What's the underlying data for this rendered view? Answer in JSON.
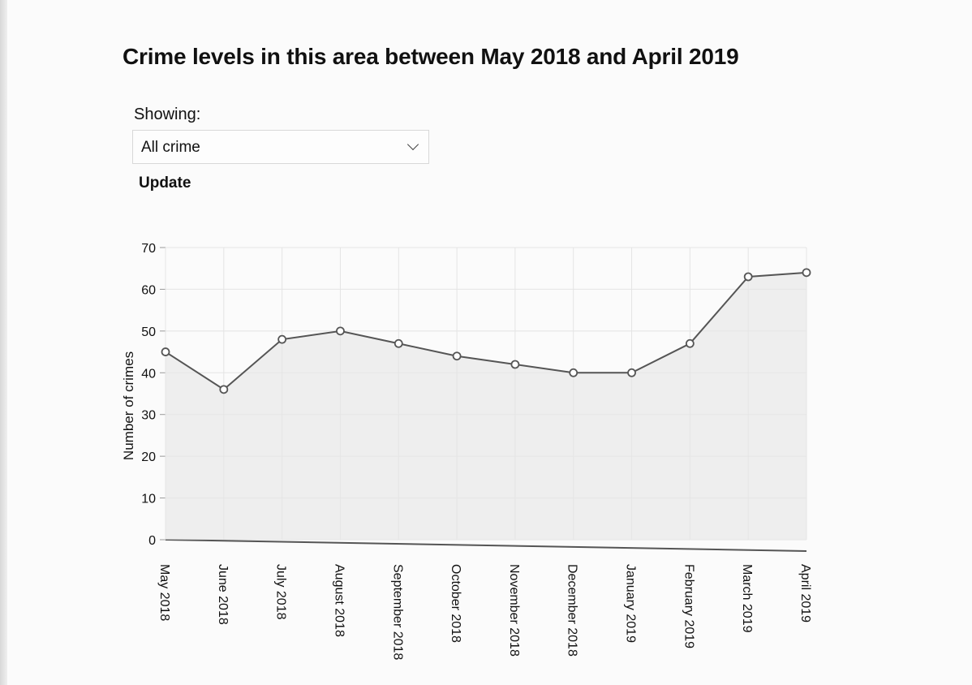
{
  "page": {
    "title": "Crime levels in this area between May 2018 and April 2019",
    "showing_label": "Showing:",
    "filter": {
      "selected": "All crime"
    },
    "update_label": "Update"
  },
  "chart_data": {
    "type": "line",
    "categories": [
      "May 2018",
      "June 2018",
      "July 2018",
      "August 2018",
      "September 2018",
      "October 2018",
      "November 2018",
      "December 2018",
      "January 2019",
      "February 2019",
      "March 2019",
      "April 2019"
    ],
    "series": [
      {
        "values": [
          45,
          36,
          48,
          50,
          47,
          44,
          42,
          40,
          40,
          47,
          63,
          64
        ]
      }
    ],
    "ylabel": "Number of crimes",
    "ylim": [
      0,
      70
    ],
    "yticks": [
      0,
      10,
      20,
      30,
      40,
      50,
      60,
      70
    ],
    "grid": true,
    "colors": {
      "line": "#555555",
      "fill": "#e6e6e6",
      "grid": "#e4e4e4"
    }
  }
}
